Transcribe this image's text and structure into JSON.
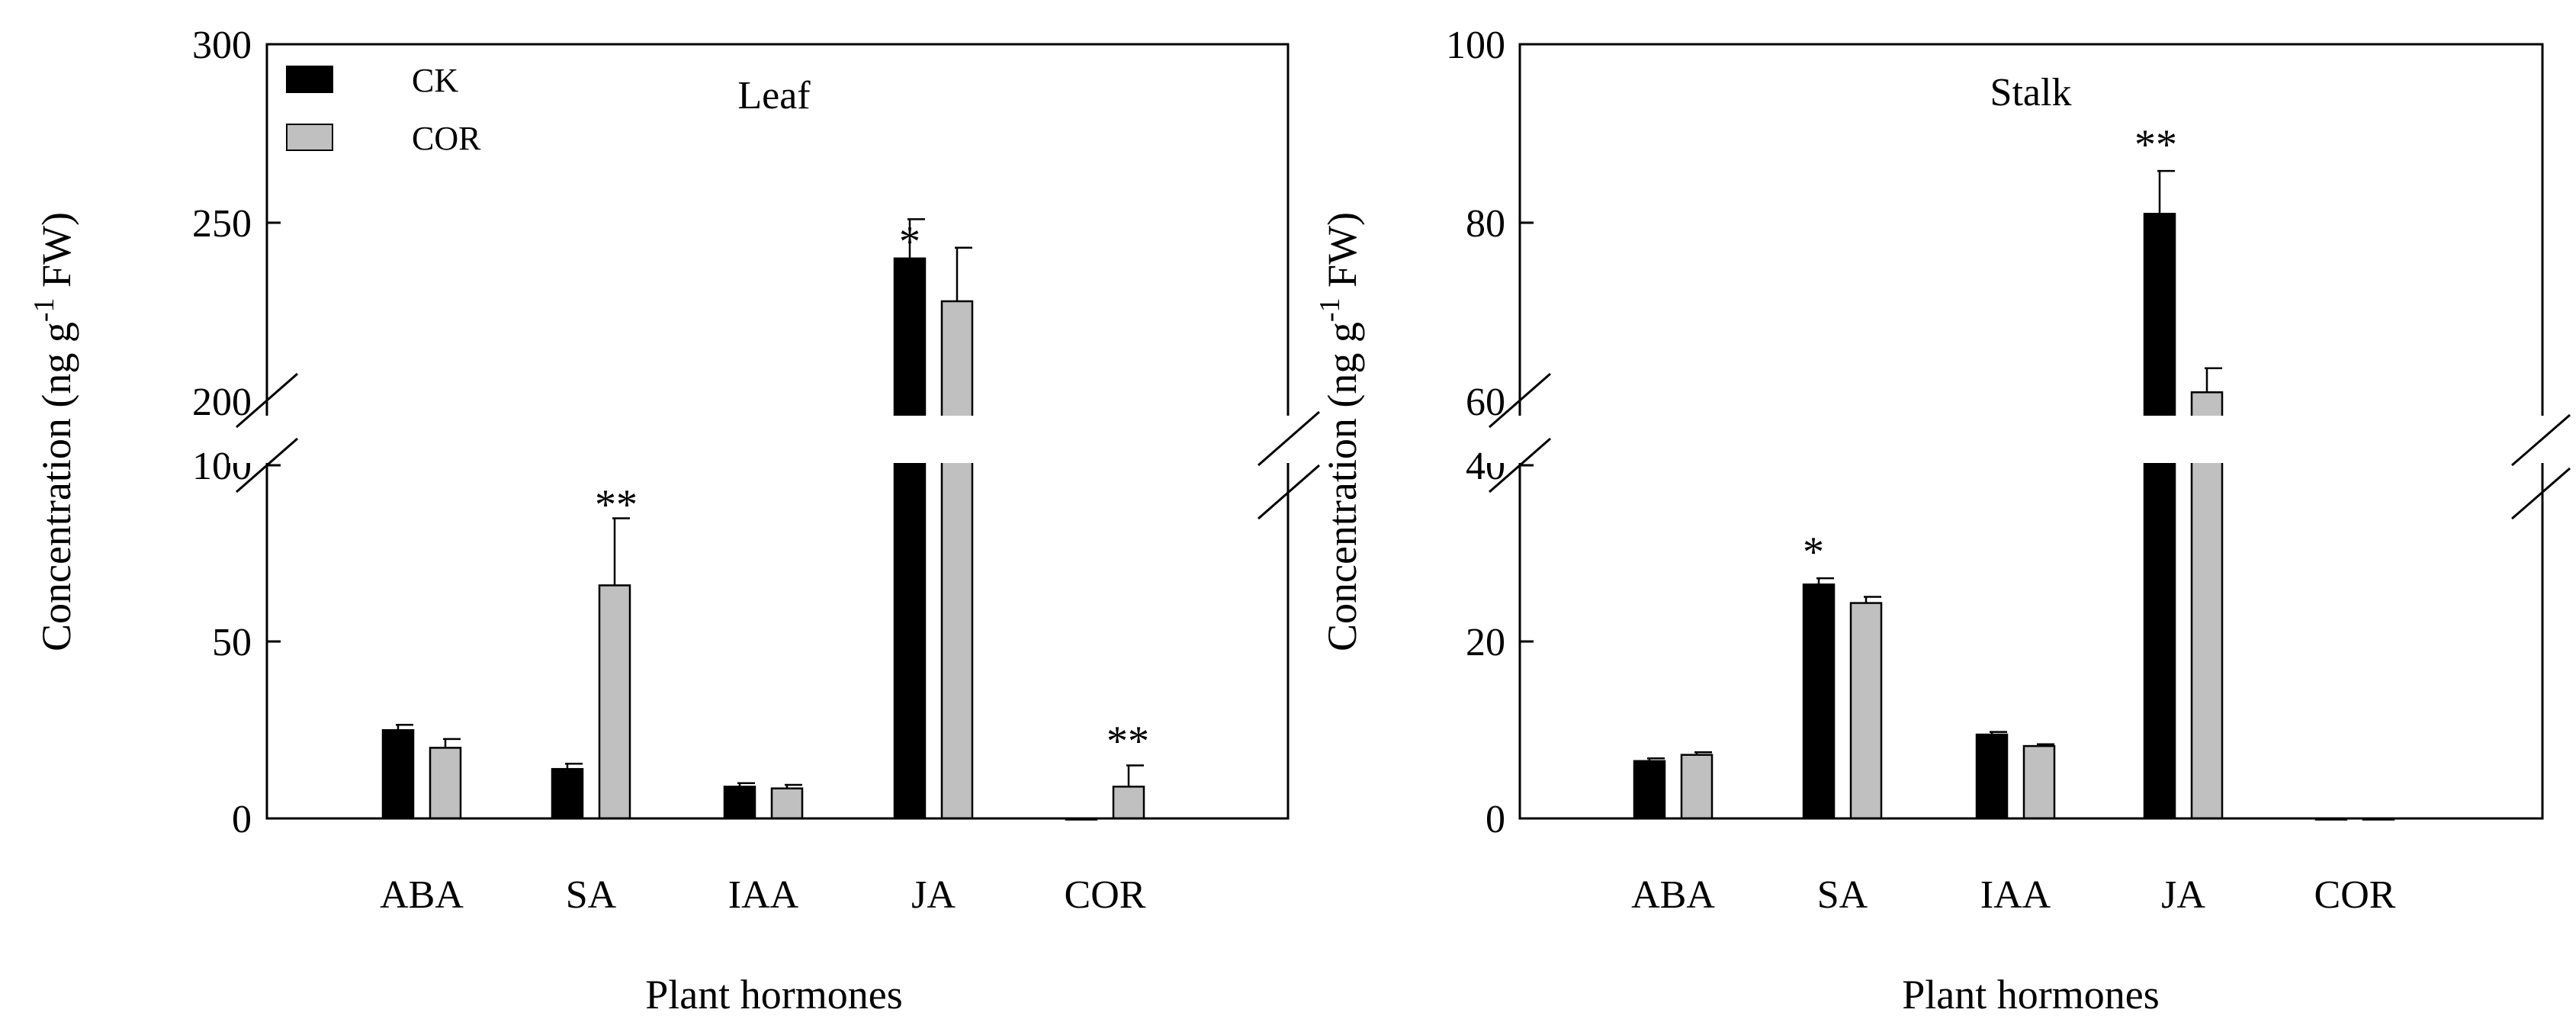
{
  "chart_data": [
    {
      "type": "bar",
      "title": "Leaf",
      "xlabel": "Plant hormones",
      "ylabel_main": "Concentration (ng g",
      "ylabel_sup": "-1",
      "ylabel_tail": " FW)",
      "categories": [
        "ABA",
        "SA",
        "IAA",
        "JA",
        "COR"
      ],
      "series": [
        {
          "name": "CK",
          "color": "#000000",
          "values": [
            25,
            14,
            9,
            240,
            0
          ],
          "errors": [
            1.5,
            1.5,
            1,
            11,
            0
          ]
        },
        {
          "name": "COR",
          "color": "#c0c0c0",
          "values": [
            20,
            66,
            8.5,
            228,
            9
          ],
          "errors": [
            2.5,
            19,
            1,
            15,
            6
          ]
        }
      ],
      "y_broken_axis": {
        "lower_range": [
          0,
          100
        ],
        "upper_range": [
          200,
          300
        ],
        "lower_ticks": [
          "0",
          "50",
          "100"
        ],
        "upper_ticks": [
          "200",
          "250",
          "300"
        ]
      },
      "significance": [
        "*",
        "**",
        "**"
      ],
      "legend": {
        "position": "top-left",
        "entries": [
          "CK",
          "COR"
        ]
      }
    },
    {
      "type": "bar",
      "title": "Stalk",
      "xlabel": "Plant hormones",
      "ylabel_main": "Concentration (ng g",
      "ylabel_sup": "-1",
      "ylabel_tail": " FW)",
      "categories": [
        "ABA",
        "SA",
        "IAA",
        "JA",
        "COR"
      ],
      "series": [
        {
          "name": "CK",
          "color": "#000000",
          "values": [
            6.5,
            26.5,
            9.5,
            81,
            0
          ],
          "errors": [
            0.3,
            0.7,
            0.3,
            4.8,
            0
          ]
        },
        {
          "name": "COR",
          "color": "#c0c0c0",
          "values": [
            7.2,
            24.4,
            8.2,
            61,
            0
          ],
          "errors": [
            0.3,
            0.7,
            0.2,
            2.7,
            0
          ]
        }
      ],
      "y_broken_axis": {
        "lower_range": [
          0,
          40
        ],
        "upper_range": [
          60,
          100
        ],
        "lower_ticks": [
          "0",
          "20",
          "40"
        ],
        "upper_ticks": [
          "60",
          "80",
          "100"
        ]
      },
      "significance": [
        "*",
        "**"
      ]
    }
  ]
}
